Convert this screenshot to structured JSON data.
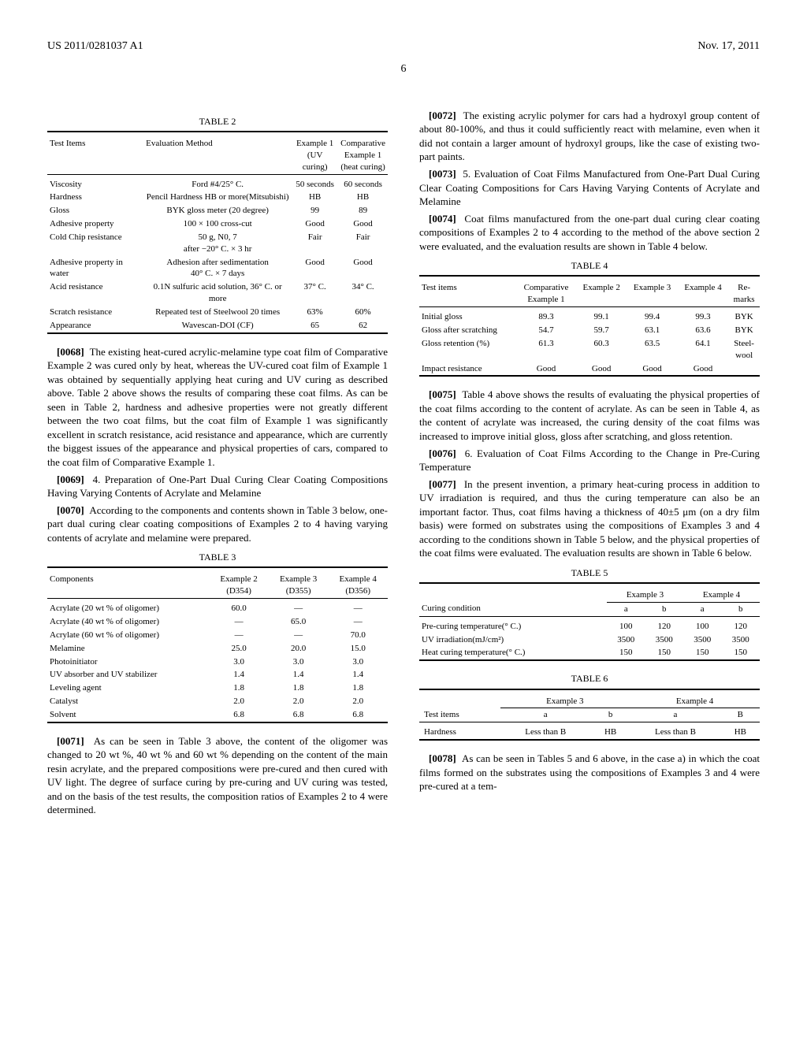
{
  "header": {
    "left": "US 2011/0281037 A1",
    "right": "Nov. 17, 2011"
  },
  "page_num": "6",
  "table2": {
    "label": "TABLE 2",
    "headers": {
      "c1": "Test Items",
      "c2": "Evaluation Method",
      "c3": "Example 1\n(UV curing)",
      "c4": "Comparative\nExample 1\n(heat curing)"
    },
    "rows": [
      {
        "c1": "Viscosity",
        "c2": "Ford #4/25° C.",
        "c3": "50 seconds",
        "c4": "60 seconds"
      },
      {
        "c1": "Hardness",
        "c2": "Pencil Hardness HB or more(Mitsubishi)",
        "c3": "HB",
        "c4": "HB"
      },
      {
        "c1": "Gloss",
        "c2": "BYK gloss meter (20 degree)",
        "c3": "99",
        "c4": "89"
      },
      {
        "c1": "Adhesive property",
        "c2": "100 × 100 cross-cut",
        "c3": "Good",
        "c4": "Good"
      },
      {
        "c1": "Cold Chip resistance",
        "c2": "50 g, N0, 7\nafter −20° C. × 3 hr",
        "c3": "Fair",
        "c4": "Fair"
      },
      {
        "c1": "Adhesive property in water",
        "c2": "Adhesion after sedimentation\n40° C. × 7 days",
        "c3": "Good",
        "c4": "Good"
      },
      {
        "c1": "Acid resistance",
        "c2": "0.1N sulfuric acid solution, 36° C. or more",
        "c3": "37° C.",
        "c4": "34° C."
      },
      {
        "c1": "Scratch resistance",
        "c2": "Repeated test of Steelwool 20 times",
        "c3": "63%",
        "c4": "60%"
      },
      {
        "c1": "Appearance",
        "c2": "Wavescan-DOI (CF)",
        "c3": "65",
        "c4": "62"
      }
    ]
  },
  "p0068": {
    "num": "[0068]",
    "text": "The existing heat-cured acrylic-melamine type coat film of Comparative Example 2 was cured only by heat, whereas the UV-cured coat film of Example 1 was obtained by sequentially applying heat curing and UV curing as described above. Table 2 above shows the results of comparing these coat films. As can be seen in Table 2, hardness and adhesive properties were not greatly different between the two coat films, but the coat film of Example 1 was significantly excellent in scratch resistance, acid resistance and appearance, which are currently the biggest issues of the appearance and physical properties of cars, compared to the coat film of Comparative Example 1."
  },
  "p0069": {
    "num": "[0069]",
    "text": "4. Preparation of One-Part Dual Curing Clear Coating Compositions Having Varying Contents of Acrylate and Melamine"
  },
  "p0070": {
    "num": "[0070]",
    "text": "According to the components and contents shown in Table 3 below, one-part dual curing clear coating compositions of Examples 2 to 4 having varying contents of acrylate and melamine were prepared."
  },
  "table3": {
    "label": "TABLE 3",
    "headers": {
      "c1": "Components",
      "c2": "Example 2\n(D354)",
      "c3": "Example 3\n(D355)",
      "c4": "Example 4\n(D356)"
    },
    "rows": [
      {
        "c1": "Acrylate (20 wt % of oligomer)",
        "c2": "60.0",
        "c3": "—",
        "c4": "—"
      },
      {
        "c1": "Acrylate (40 wt % of oligomer)",
        "c2": "—",
        "c3": "65.0",
        "c4": "—"
      },
      {
        "c1": "Acrylate (60 wt % of oligomer)",
        "c2": "—",
        "c3": "—",
        "c4": "70.0"
      },
      {
        "c1": "Melamine",
        "c2": "25.0",
        "c3": "20.0",
        "c4": "15.0"
      },
      {
        "c1": "Photoinitiator",
        "c2": "3.0",
        "c3": "3.0",
        "c4": "3.0"
      },
      {
        "c1": "UV absorber and UV stabilizer",
        "c2": "1.4",
        "c3": "1.4",
        "c4": "1.4"
      },
      {
        "c1": "Leveling agent",
        "c2": "1.8",
        "c3": "1.8",
        "c4": "1.8"
      },
      {
        "c1": "Catalyst",
        "c2": "2.0",
        "c3": "2.0",
        "c4": "2.0"
      },
      {
        "c1": "Solvent",
        "c2": "6.8",
        "c3": "6.8",
        "c4": "6.8"
      }
    ]
  },
  "p0071": {
    "num": "[0071]",
    "text": "As can be seen in Table 3 above, the content of the oligomer was changed to 20 wt %, 40 wt % and 60 wt % depending on the content of the main resin acrylate, and the prepared compositions were pre-cured and then cured with UV light. The degree of surface curing by pre-curing and UV curing was tested, and on the basis of the test results, the composition ratios of Examples 2 to 4 were determined."
  },
  "p0072": {
    "num": "[0072]",
    "text": "The existing acrylic polymer for cars had a hydroxyl group content of about 80-100%, and thus it could sufficiently react with melamine, even when it did not contain a larger amount of hydroxyl groups, like the case of existing two-part paints."
  },
  "p0073": {
    "num": "[0073]",
    "text": "5. Evaluation of Coat Films Manufactured from One-Part Dual Curing Clear Coating Compositions for Cars Having Varying Contents of Acrylate and Melamine"
  },
  "p0074": {
    "num": "[0074]",
    "text": "Coat films manufactured from the one-part dual curing clear coating compositions of Examples 2 to 4 according to the method of the above section 2 were evaluated, and the evaluation results are shown in Table 4 below."
  },
  "table4": {
    "label": "TABLE 4",
    "headers": {
      "c1": "Test items",
      "c2": "Comparative\nExample 1",
      "c3": "Example 2",
      "c4": "Example 3",
      "c5": "Example 4",
      "c6": "Re-\nmarks"
    },
    "rows": [
      {
        "c1": "Initial gloss",
        "c2": "89.3",
        "c3": "99.1",
        "c4": "99.4",
        "c5": "99.3",
        "c6": "BYK"
      },
      {
        "c1": "Gloss after scratching",
        "c2": "54.7",
        "c3": "59.7",
        "c4": "63.1",
        "c5": "63.6",
        "c6": "BYK"
      },
      {
        "c1": "Gloss retention (%)",
        "c2": "61.3",
        "c3": "60.3",
        "c4": "63.5",
        "c5": "64.1",
        "c6": "Steel-\nwool"
      },
      {
        "c1": "Impact resistance",
        "c2": "Good",
        "c3": "Good",
        "c4": "Good",
        "c5": "Good",
        "c6": ""
      }
    ]
  },
  "p0075": {
    "num": "[0075]",
    "text": "Table 4 above shows the results of evaluating the physical properties of the coat films according to the content of acrylate. As can be seen in Table 4, as the content of acrylate was increased, the curing density of the coat films was increased to improve initial gloss, gloss after scratching, and gloss retention."
  },
  "p0076": {
    "num": "[0076]",
    "text": "6. Evaluation of Coat Films According to the Change in Pre-Curing Temperature"
  },
  "p0077": {
    "num": "[0077]",
    "text": "In the present invention, a primary heat-curing process in addition to UV irradiation is required, and thus the curing temperature can also be an important factor. Thus, coat films having a thickness of 40±5 μm (on a dry film basis) were formed on substrates using the compositions of Examples 3 and 4 according to the conditions shown in Table 5 below, and the physical properties of the coat films were evaluated. The evaluation results are shown in Table 6 below."
  },
  "table5": {
    "label": "TABLE 5",
    "header1": {
      "c1": "",
      "c2": "Example 3",
      "c3": "Example 4"
    },
    "header2": {
      "c1": "Curing condition",
      "c2": "a",
      "c3": "b",
      "c4": "a",
      "c5": "b"
    },
    "rows": [
      {
        "c1": "Pre-curing temperature(° C.)",
        "c2": "100",
        "c3": "120",
        "c4": "100",
        "c5": "120"
      },
      {
        "c1": "UV irradiation(mJ/cm²)",
        "c2": "3500",
        "c3": "3500",
        "c4": "3500",
        "c5": "3500"
      },
      {
        "c1": "Heat curing temperature(° C.)",
        "c2": "150",
        "c3": "150",
        "c4": "150",
        "c5": "150"
      }
    ]
  },
  "table6": {
    "label": "TABLE 6",
    "header1": {
      "c1": "",
      "c2": "Example 3",
      "c3": "Example 4"
    },
    "header2": {
      "c1": "Test items",
      "c2": "a",
      "c3": "b",
      "c4": "a",
      "c5": "B"
    },
    "rows": [
      {
        "c1": "Hardness",
        "c2": "Less than B",
        "c3": "HB",
        "c4": "Less than B",
        "c5": "HB"
      }
    ]
  },
  "p0078": {
    "num": "[0078]",
    "text": "As can be seen in Tables 5 and 6 above, in the case a) in which the coat films formed on the substrates using the compositions of Examples 3 and 4 were pre-cured at a tem-"
  }
}
